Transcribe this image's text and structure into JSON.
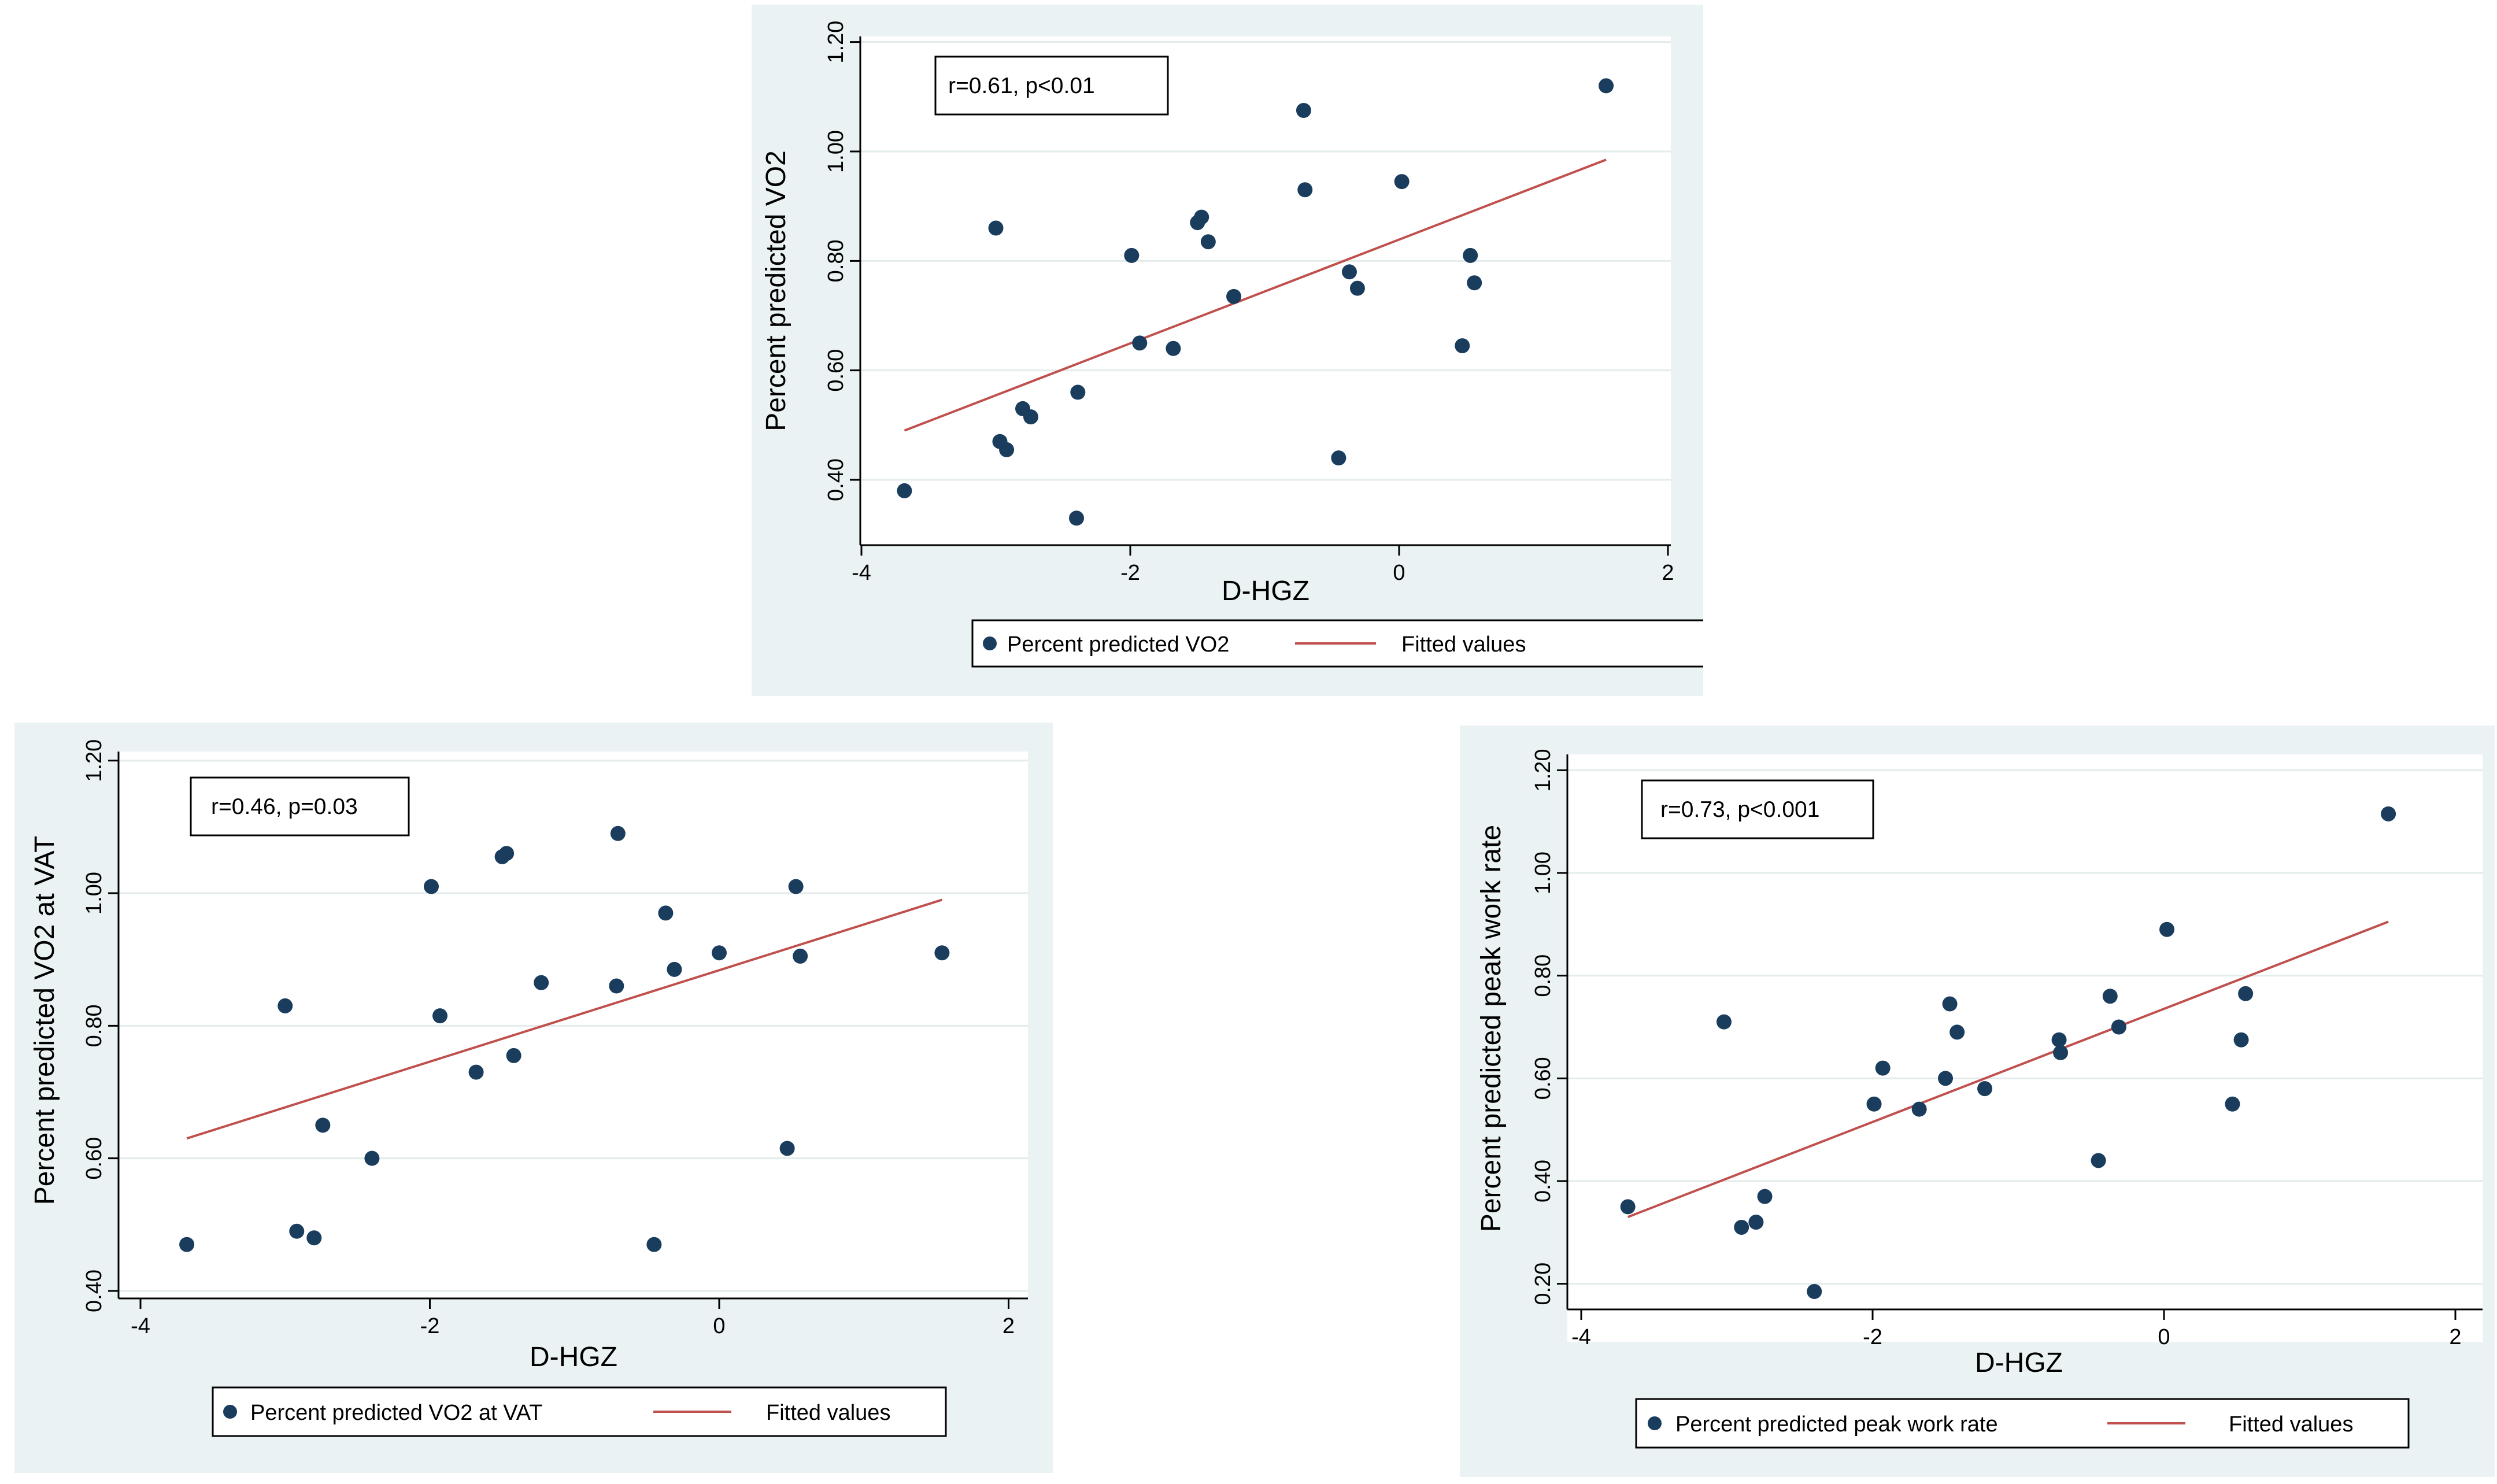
{
  "colors": {
    "panel_bg": "#eaf2f3",
    "plot_bg": "#ffffff",
    "marker": "#1a3d5e",
    "fit_line": "#c0504d",
    "grid": "#e3ebeb",
    "axis": "#000000"
  },
  "chart_data": [
    {
      "type": "scatter",
      "title": "",
      "xlabel": "D-HGZ",
      "ylabel": "Percent predicted VO2",
      "xlim": [
        -4,
        2
      ],
      "ylim": [
        0.3,
        1.2
      ],
      "xticks": [
        -4,
        -2,
        0,
        2
      ],
      "xtick_labels": [
        "-4",
        "-2",
        "0",
        "2"
      ],
      "yticks": [
        0.4,
        0.6,
        0.8,
        1.0,
        1.2
      ],
      "ytick_labels": [
        "0.40",
        "0.60",
        "0.80",
        "1.00",
        "1.20"
      ],
      "annotation": "r=0.61, p<0.01",
      "series": [
        {
          "name": "Percent predicted VO2",
          "kind": "scatter",
          "x": [
            -3.68,
            -3.0,
            -2.97,
            -2.92,
            -2.8,
            -2.74,
            -2.4,
            -2.39,
            -1.99,
            -1.93,
            -1.68,
            -1.5,
            -1.47,
            -1.42,
            -1.23,
            -0.71,
            -0.7,
            -0.45,
            -0.37,
            -0.31,
            0.02,
            0.47,
            0.53,
            0.56,
            1.54
          ],
          "y": [
            0.38,
            0.86,
            0.47,
            0.455,
            0.53,
            0.515,
            0.33,
            0.56,
            0.81,
            0.65,
            0.64,
            0.87,
            0.88,
            0.835,
            0.735,
            1.075,
            0.93,
            0.44,
            0.78,
            0.75,
            0.945,
            0.645,
            0.81,
            0.76,
            1.12
          ]
        },
        {
          "name": "Fitted values",
          "kind": "line",
          "x": [
            -3.68,
            1.54
          ],
          "y": [
            0.49,
            0.985
          ]
        }
      ]
    },
    {
      "type": "scatter",
      "title": "",
      "xlabel": "D-HGZ",
      "ylabel": "Percent predicted VO2 at VAT",
      "xlim": [
        -4,
        2
      ],
      "ylim": [
        0.4,
        1.2
      ],
      "xticks": [
        -4,
        -2,
        0,
        2
      ],
      "xtick_labels": [
        "-4",
        "-2",
        "0",
        "2"
      ],
      "yticks": [
        0.4,
        0.6,
        0.8,
        1.0,
        1.2
      ],
      "ytick_labels": [
        "0.40",
        "0.60",
        "0.80",
        "1.00",
        "1.20"
      ],
      "annotation": "r=0.46, p=0.03",
      "series": [
        {
          "name": "Percent predicted VO2 at VAT",
          "kind": "scatter",
          "x": [
            -3.68,
            -3.0,
            -2.92,
            -2.8,
            -2.74,
            -2.4,
            -1.99,
            -1.93,
            -1.68,
            -1.5,
            -1.47,
            -1.42,
            -1.23,
            -0.71,
            -0.7,
            -0.45,
            -0.37,
            -0.31,
            0.0,
            0.47,
            0.53,
            0.56,
            1.54
          ],
          "y": [
            0.47,
            0.83,
            0.49,
            0.48,
            0.65,
            0.6,
            1.01,
            0.815,
            0.73,
            1.055,
            1.06,
            0.755,
            0.865,
            0.86,
            1.09,
            0.47,
            0.97,
            0.885,
            0.91,
            0.615,
            1.01,
            0.905,
            0.91
          ]
        },
        {
          "name": "Fitted values",
          "kind": "line",
          "x": [
            -3.68,
            1.54
          ],
          "y": [
            0.63,
            0.99
          ]
        }
      ]
    },
    {
      "type": "scatter",
      "title": "",
      "xlabel": "D-HGZ",
      "ylabel": "Percent predicted peak work rate",
      "xlim": [
        -4,
        2
      ],
      "ylim": [
        0.2,
        1.2
      ],
      "xticks": [
        -4,
        -2,
        0,
        2
      ],
      "xtick_labels": [
        "-4",
        "-2",
        "0",
        "2"
      ],
      "yticks": [
        0.2,
        0.4,
        0.6,
        0.8,
        1.0,
        1.2
      ],
      "ytick_labels": [
        "0.20",
        "0.40",
        "0.60",
        "0.80",
        "1.00",
        "1.20"
      ],
      "annotation": "r=0.73, p<0.001",
      "series": [
        {
          "name": "Percent predicted peak work rate",
          "kind": "scatter",
          "x": [
            -3.68,
            -3.02,
            -2.9,
            -2.8,
            -2.74,
            -2.4,
            -1.99,
            -1.93,
            -1.68,
            -1.5,
            -1.47,
            -1.42,
            -1.23,
            -0.72,
            -0.71,
            -0.45,
            -0.37,
            -0.31,
            0.02,
            0.47,
            0.53,
            0.56,
            1.54
          ],
          "y": [
            0.35,
            0.71,
            0.31,
            0.32,
            0.37,
            0.185,
            0.55,
            0.62,
            0.54,
            0.6,
            0.745,
            0.69,
            0.58,
            0.675,
            0.65,
            0.44,
            0.76,
            0.7,
            0.89,
            0.55,
            0.675,
            0.765,
            1.115
          ]
        },
        {
          "name": "Fitted values",
          "kind": "line",
          "x": [
            -3.68,
            1.54
          ],
          "y": [
            0.33,
            0.905
          ]
        }
      ]
    }
  ]
}
